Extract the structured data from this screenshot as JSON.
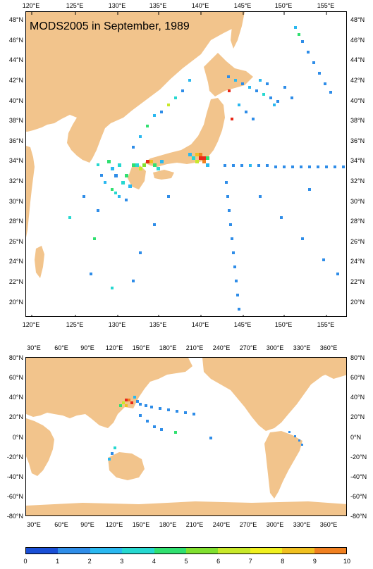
{
  "title": "MODS2005 in September, 1989",
  "colors": {
    "land": "#f2c48c",
    "ocean": "#ffffff",
    "scale": [
      "#1a4fd6",
      "#2f8de8",
      "#2ab8f0",
      "#26d8d0",
      "#30e070",
      "#80e030",
      "#c8e82a",
      "#f0f020",
      "#f0c020",
      "#f08020",
      "#e82818"
    ]
  },
  "top_map": {
    "lon_labels": [
      "120°E",
      "125°E",
      "130°E",
      "135°E",
      "140°E",
      "145°E",
      "150°E",
      "155°E"
    ],
    "lat_labels": [
      "48°N",
      "46°N",
      "44°N",
      "42°N",
      "40°N",
      "38°N",
      "36°N",
      "34°N",
      "32°N",
      "30°N",
      "28°N",
      "26°N",
      "24°N",
      "22°N",
      "20°N"
    ]
  },
  "bottom_map": {
    "lon_labels": [
      "30°E",
      "60°E",
      "90°E",
      "120°E",
      "150°E",
      "180°E",
      "210°E",
      "240°E",
      "270°E",
      "300°E",
      "330°E",
      "360°E"
    ],
    "lat_labels": [
      "80°N",
      "60°N",
      "40°N",
      "20°N",
      "0°N",
      "-20°N",
      "-40°N",
      "-60°N",
      "-80°N"
    ]
  },
  "colorbar": {
    "labels": [
      "0",
      "1",
      "2",
      "3",
      "4",
      "5",
      "6",
      "7",
      "8",
      "9",
      "10"
    ]
  }
}
